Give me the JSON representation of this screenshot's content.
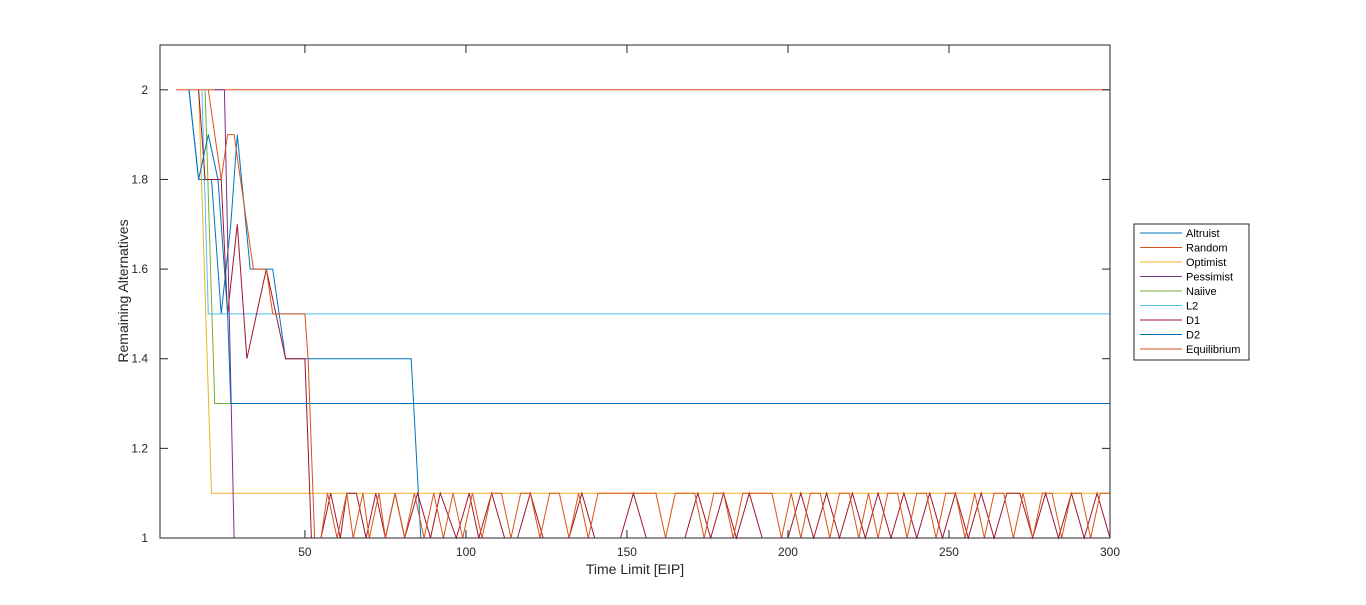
{
  "chart_data": {
    "type": "line",
    "title": "",
    "xlabel": "Time Limit [EIP]",
    "ylabel": "Remaining Alternatives",
    "xlim": [
      5,
      300
    ],
    "ylim": [
      1,
      2.1
    ],
    "xticks": [
      50,
      100,
      150,
      200,
      250,
      300
    ],
    "yticks": [
      1,
      1.2,
      1.4,
      1.6,
      1.8,
      2
    ],
    "grid": false,
    "legend_position": "right",
    "series": [
      {
        "name": "Altruist",
        "color": "#0072BD",
        "x": [
          14,
          17,
          19,
          21,
          24,
          27,
          29,
          33,
          36,
          40,
          44,
          48,
          51,
          55,
          60,
          70,
          80,
          83,
          86,
          90,
          300
        ],
        "y": [
          2,
          1.8,
          1.8,
          1.8,
          1.5,
          1.7,
          1.9,
          1.6,
          1.6,
          1.6,
          1.4,
          1.4,
          1.4,
          1.4,
          1.4,
          1.4,
          1.4,
          1.4,
          1,
          1,
          1
        ]
      },
      {
        "name": "Random",
        "color": "#D95319",
        "x": [
          10,
          12,
          300
        ],
        "y": [
          2,
          2,
          2
        ]
      },
      {
        "name": "Optimist",
        "color": "#EDB120",
        "x": [
          17,
          21,
          24,
          300
        ],
        "y": [
          2,
          1.1,
          1.1,
          1.1
        ]
      },
      {
        "name": "Pessimist",
        "color": "#7E2F8E",
        "x": [
          22,
          25,
          28,
          30,
          300
        ],
        "y": [
          2,
          2,
          1,
          1,
          1
        ]
      },
      {
        "name": "Naiive",
        "color": "#77AC30",
        "x": [
          19,
          22,
          25,
          300
        ],
        "y": [
          2,
          1.3,
          1.3,
          1.3
        ]
      },
      {
        "name": "L2",
        "color": "#4DBEEE",
        "x": [
          18,
          20,
          23,
          300
        ],
        "y": [
          2,
          1.5,
          1.5,
          1.5
        ]
      },
      {
        "name": "D1",
        "color": "#A2142F",
        "x": [
          17,
          19,
          24,
          26,
          29,
          32,
          35,
          38,
          41,
          44,
          47,
          50,
          52,
          55,
          58,
          61,
          63,
          66,
          69,
          72,
          75,
          78,
          81,
          85,
          89,
          92,
          97,
          101,
          104,
          108,
          112,
          116,
          120,
          124,
          128,
          132,
          136,
          140,
          144,
          148,
          152,
          156,
          160,
          164,
          168,
          172,
          176,
          180,
          184,
          188,
          192,
          196,
          200,
          204,
          208,
          212,
          216,
          220,
          224,
          228,
          232,
          236,
          240,
          244,
          248,
          252,
          256,
          260,
          264,
          268,
          272,
          276,
          280,
          284,
          288,
          292,
          296,
          300
        ],
        "y": [
          2,
          1.8,
          1.8,
          1.5,
          1.7,
          1.4,
          1.5,
          1.6,
          1.5,
          1.4,
          1.4,
          1.4,
          1,
          1,
          1.1,
          1,
          1.1,
          1.1,
          1,
          1.1,
          1,
          1.1,
          1,
          1.1,
          1,
          1.1,
          1,
          1.1,
          1,
          1.1,
          1,
          1,
          1.1,
          1,
          1,
          1,
          1.1,
          1,
          1,
          1,
          1.1,
          1,
          1,
          1,
          1,
          1.1,
          1,
          1.1,
          1,
          1.1,
          1,
          1,
          1,
          1.1,
          1,
          1.1,
          1,
          1.1,
          1,
          1.1,
          1,
          1.1,
          1,
          1.1,
          1,
          1.1,
          1,
          1.1,
          1,
          1.1,
          1.1,
          1,
          1.1,
          1,
          1.1,
          1,
          1.1,
          1
        ]
      },
      {
        "name": "D2",
        "color": "#0072BD",
        "x": [
          14,
          17,
          20,
          23,
          26,
          27,
          300
        ],
        "y": [
          2,
          1.8,
          1.9,
          1.8,
          1.5,
          1.3,
          1.3
        ]
      },
      {
        "name": "Equilibrium",
        "color": "#D95319",
        "x": [
          20,
          24,
          26,
          28,
          30,
          32,
          34,
          36,
          38,
          40,
          42,
          44,
          46,
          48,
          50,
          51,
          53,
          55,
          57,
          60,
          63,
          65,
          68,
          70,
          73,
          75,
          78,
          81,
          84,
          87,
          90,
          93,
          96,
          99,
          102,
          105,
          108,
          111,
          114,
          117,
          120,
          123,
          126,
          129,
          132,
          135,
          138,
          141,
          144,
          147,
          150,
          153,
          156,
          159,
          162,
          165,
          168,
          171,
          174,
          177,
          180,
          183,
          186,
          189,
          192,
          195,
          198,
          201,
          204,
          207,
          210,
          213,
          216,
          219,
          222,
          225,
          228,
          231,
          234,
          237,
          240,
          243,
          246,
          249,
          252,
          255,
          258,
          261,
          264,
          267,
          270,
          273,
          276,
          279,
          282,
          285,
          288,
          291,
          294,
          297,
          300
        ],
        "y": [
          2,
          1.8,
          1.9,
          1.9,
          1.8,
          1.7,
          1.6,
          1.6,
          1.6,
          1.5,
          1.5,
          1.5,
          1.5,
          1.5,
          1.5,
          1.4,
          1,
          1,
          1.1,
          1,
          1.1,
          1,
          1.1,
          1,
          1.1,
          1,
          1.1,
          1,
          1.1,
          1,
          1.1,
          1,
          1.1,
          1,
          1.1,
          1,
          1.1,
          1.1,
          1,
          1.1,
          1.1,
          1,
          1.1,
          1.1,
          1,
          1.1,
          1,
          1.1,
          1.1,
          1.1,
          1.1,
          1.1,
          1.1,
          1.1,
          1,
          1.1,
          1.1,
          1.1,
          1,
          1.1,
          1.1,
          1,
          1.1,
          1.1,
          1.1,
          1.1,
          1,
          1.1,
          1,
          1.1,
          1.1,
          1,
          1.1,
          1.1,
          1,
          1.1,
          1,
          1.1,
          1.1,
          1,
          1.1,
          1.1,
          1,
          1.1,
          1.1,
          1,
          1.1,
          1,
          1.1,
          1.1,
          1,
          1.1,
          1,
          1.1,
          1.1,
          1,
          1.1,
          1.1,
          1,
          1.1,
          1.1
        ]
      }
    ]
  }
}
